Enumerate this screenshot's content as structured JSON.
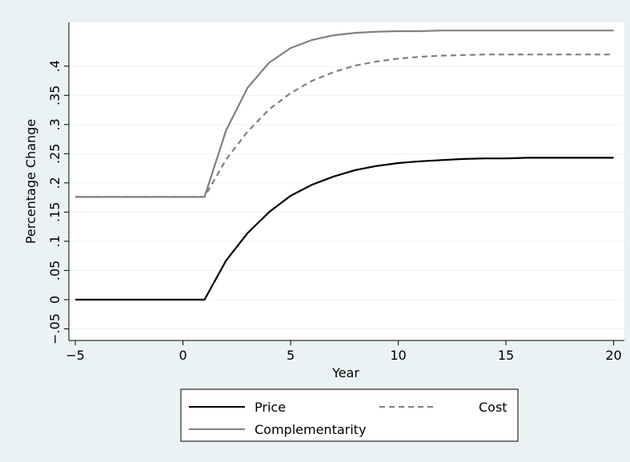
{
  "chart_data": {
    "type": "line",
    "title": "",
    "xlabel": "Year",
    "ylabel": "Percentage Change",
    "xlim": [
      -5.3,
      20.5
    ],
    "ylim": [
      -0.07,
      0.475
    ],
    "xticks": [
      -5,
      0,
      5,
      10,
      15,
      20
    ],
    "xtick_labels": [
      "−5",
      "0",
      "5",
      "10",
      "15",
      "20"
    ],
    "yticks": [
      -0.05,
      0,
      0.05,
      0.1,
      0.15,
      0.2,
      0.25,
      0.3,
      0.35,
      0.4
    ],
    "ytick_labels": [
      "−.05",
      "0",
      ".05",
      ".1",
      ".15",
      ".2",
      ".25",
      ".3",
      ".35",
      ".4"
    ],
    "grid": true,
    "legend_position": "bottom",
    "x": [
      -5,
      -4,
      -3,
      -2,
      -1,
      0,
      1,
      2,
      3,
      4,
      5,
      6,
      7,
      8,
      9,
      10,
      11,
      12,
      13,
      14,
      15,
      16,
      17,
      18,
      19,
      20
    ],
    "series": [
      {
        "name": "Price",
        "color": "#000000",
        "dash": "solid",
        "values": [
          0,
          0,
          0,
          0,
          0,
          0,
          0,
          0.067,
          0.114,
          0.15,
          0.178,
          0.197,
          0.211,
          0.222,
          0.229,
          0.234,
          0.237,
          0.239,
          0.241,
          0.242,
          0.242,
          0.243,
          0.243,
          0.243,
          0.243,
          0.243
        ]
      },
      {
        "name": "Cost",
        "color": "#808080",
        "dash": "dashed",
        "values": [
          0.176,
          0.176,
          0.176,
          0.176,
          0.176,
          0.176,
          0.176,
          0.24,
          0.288,
          0.326,
          0.354,
          0.375,
          0.39,
          0.401,
          0.408,
          0.413,
          0.416,
          0.418,
          0.419,
          0.42,
          0.42,
          0.42,
          0.42,
          0.42,
          0.42,
          0.42
        ]
      },
      {
        "name": "Complementarity",
        "color": "#808080",
        "dash": "solid",
        "values": [
          0.176,
          0.176,
          0.176,
          0.176,
          0.176,
          0.176,
          0.176,
          0.29,
          0.363,
          0.406,
          0.431,
          0.445,
          0.453,
          0.457,
          0.459,
          0.46,
          0.46,
          0.461,
          0.461,
          0.461,
          0.461,
          0.461,
          0.461,
          0.461,
          0.461,
          0.461
        ]
      }
    ]
  }
}
